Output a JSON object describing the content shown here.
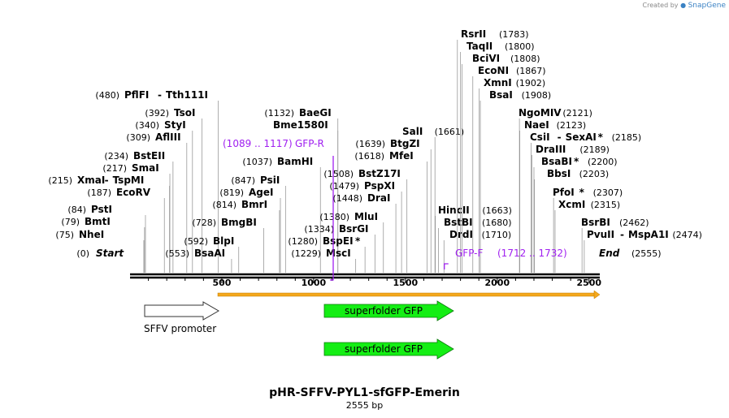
{
  "credit": {
    "prefix": "Created by",
    "brand": "SnapGene"
  },
  "plasmid": {
    "name": "pHR-SFFV-PYL1-sfGFP-Emerin",
    "length_label": "2555 bp",
    "length": 2555
  },
  "colors": {
    "gfp": "#14ee14",
    "orf": "#f4a81c",
    "primer": "#a020f0",
    "backbone": "#000000"
  },
  "ticks": [
    "500",
    "1000",
    "1500",
    "2000",
    "2500"
  ],
  "ends": [
    {
      "name": "Start",
      "pos": "(0)",
      "bp": 0
    },
    {
      "name": "End",
      "pos": "(2555)",
      "bp": 2555
    }
  ],
  "sites": [
    {
      "name": "NheI",
      "pos": "(75)",
      "bp": 75
    },
    {
      "name": "BmtI",
      "pos": "(79)",
      "bp": 79
    },
    {
      "name": "PstI",
      "pos": "(84)",
      "bp": 84
    },
    {
      "name": "EcoRV",
      "pos": "(187)",
      "bp": 187
    },
    {
      "name": "XmaI",
      "suffix": "TspMI",
      "pos": "(215)",
      "bp": 215
    },
    {
      "name": "SmaI",
      "pos": "(217)",
      "bp": 217
    },
    {
      "name": "BstEII",
      "pos": "(234)",
      "bp": 234
    },
    {
      "name": "AflIII",
      "pos": "(309)",
      "bp": 309
    },
    {
      "name": "StyI",
      "pos": "(340)",
      "bp": 340
    },
    {
      "name": "TsoI",
      "pos": "(392)",
      "bp": 392
    },
    {
      "name": "PflFI",
      "suffix": "Tth111I",
      "pos": "(480)",
      "bp": 480
    },
    {
      "name": "BsaAI",
      "pos": "(553)",
      "bp": 553
    },
    {
      "name": "BlpI",
      "pos": "(592)",
      "bp": 592
    },
    {
      "name": "BmgBI",
      "pos": "(728)",
      "bp": 728
    },
    {
      "name": "BmrI",
      "pos": "(814)",
      "bp": 814
    },
    {
      "name": "AgeI",
      "pos": "(819)",
      "bp": 819
    },
    {
      "name": "PsiI",
      "pos": "(847)",
      "bp": 847
    },
    {
      "name": "BamHI",
      "pos": "(1037)",
      "bp": 1037
    },
    {
      "name": "Bme1580I",
      "pos": "",
      "bp": 1132
    },
    {
      "name": "BaeGI",
      "pos": "(1132)",
      "bp": 1132
    },
    {
      "name": "MscI",
      "pos": "(1229)",
      "bp": 1229
    },
    {
      "name": "BspEI",
      "suffix_star": "*",
      "pos": "(1280)",
      "bp": 1280
    },
    {
      "name": "BsrGI",
      "pos": "(1334)",
      "bp": 1334
    },
    {
      "name": "MluI",
      "pos": "(1380)",
      "bp": 1380
    },
    {
      "name": "DraI",
      "pos": "(1448)",
      "bp": 1448
    },
    {
      "name": "PspXI",
      "pos": "(1479)",
      "bp": 1479
    },
    {
      "name": "BstZ17I",
      "pos": "(1508)",
      "bp": 1508
    },
    {
      "name": "MfeI",
      "pos": "(1618)",
      "bp": 1618
    },
    {
      "name": "BtgZI",
      "pos": "(1639)",
      "bp": 1639
    },
    {
      "name": "SalI",
      "pos": "(1661)",
      "bp": 1661
    },
    {
      "name": "HincII",
      "pos": "(1663)",
      "bp": 1663
    },
    {
      "name": "BstBI",
      "pos": "(1680)",
      "bp": 1680
    },
    {
      "name": "DrdI",
      "pos": "(1710)",
      "bp": 1710
    },
    {
      "name": "RsrII",
      "pos": "(1783)",
      "bp": 1783
    },
    {
      "name": "TaqII",
      "pos": "(1800)",
      "bp": 1800
    },
    {
      "name": "BciVI",
      "pos": "(1808)",
      "bp": 1808
    },
    {
      "name": "EcoNI",
      "pos": "(1867)",
      "bp": 1867
    },
    {
      "name": "XmnI",
      "pos": "(1902)",
      "bp": 1902
    },
    {
      "name": "BsaI",
      "pos": "(1908)",
      "bp": 1908
    },
    {
      "name": "NgoMIV",
      "pos": "(2121)",
      "bp": 2121
    },
    {
      "name": "NaeI",
      "pos": "(2123)",
      "bp": 2123
    },
    {
      "name": "CsiI",
      "suffix": "SexAI",
      "suffix_star": "*",
      "pos": "(2185)",
      "bp": 2185
    },
    {
      "name": "DraIII",
      "pos": "(2189)",
      "bp": 2189
    },
    {
      "name": "BsaBI",
      "suffix_star": "*",
      "pos": "(2200)",
      "bp": 2200
    },
    {
      "name": "BbsI",
      "pos": "(2203)",
      "bp": 2203
    },
    {
      "name": "PfoI",
      "suffix_star": "*",
      "pos": "(2307)",
      "bp": 2307
    },
    {
      "name": "XcmI",
      "pos": "(2315)",
      "bp": 2315
    },
    {
      "name": "BsrBI",
      "pos": "(2462)",
      "bp": 2462
    },
    {
      "name": "PvuII",
      "suffix": "MspA1I",
      "pos": "(2474)",
      "bp": 2474
    }
  ],
  "primers": [
    {
      "name": "GFP-R",
      "range": "(1089 .. 1117)",
      "start_bp": 1089,
      "end_bp": 1117,
      "direction": "reverse"
    },
    {
      "name": "GFP-F",
      "range": "(1712 .. 1732)",
      "start_bp": 1712,
      "end_bp": 1732,
      "direction": "forward"
    }
  ],
  "features": [
    {
      "name": "SFFV promoter",
      "type": "promoter",
      "start_bp": 84,
      "end_bp": 495
    },
    {
      "name": "superfolder GFP",
      "type": "cds",
      "start_bp": 1100,
      "end_bp": 1800
    },
    {
      "name": "superfolder GFP",
      "type": "cds",
      "start_bp": 1100,
      "end_bp": 1800
    }
  ],
  "orf": {
    "start_bp": 495,
    "end_bp": 2555
  }
}
